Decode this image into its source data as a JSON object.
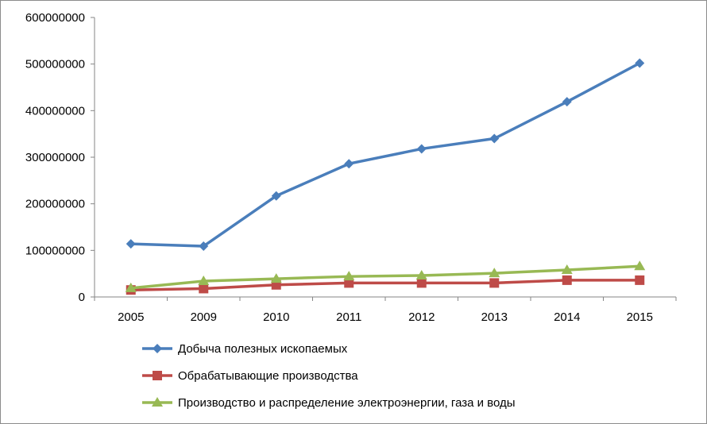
{
  "chart_data": {
    "type": "line",
    "title": "",
    "xlabel": "",
    "ylabel": "",
    "categories": [
      "2005",
      "2009",
      "2010",
      "2011",
      "2012",
      "2013",
      "2014",
      "2015"
    ],
    "ylim": [
      0,
      600000000
    ],
    "yticks": [
      0,
      100000000,
      200000000,
      300000000,
      400000000,
      500000000,
      600000000
    ],
    "ytick_labels": [
      "0",
      "100000000",
      "200000000",
      "300000000",
      "400000000",
      "500000000",
      "600000000"
    ],
    "grid": false,
    "legend": "bottom",
    "series": [
      {
        "name": "Добыча полезных ископаемых",
        "color": "#4a7ebb",
        "marker": "diamond",
        "values": [
          114000000,
          109000000,
          217000000,
          286000000,
          318000000,
          340000000,
          419000000,
          502000000
        ]
      },
      {
        "name": "Обрабатывающие производства",
        "color": "#be4b48",
        "marker": "square",
        "values": [
          15000000,
          18000000,
          26000000,
          30000000,
          30000000,
          30000000,
          36000000,
          36000000
        ]
      },
      {
        "name": "Производство и распределение  электроэнергии, газа и воды",
        "color": "#98b954",
        "marker": "triangle",
        "values": [
          19000000,
          34000000,
          39000000,
          44000000,
          46000000,
          51000000,
          58000000,
          66000000
        ]
      }
    ]
  }
}
